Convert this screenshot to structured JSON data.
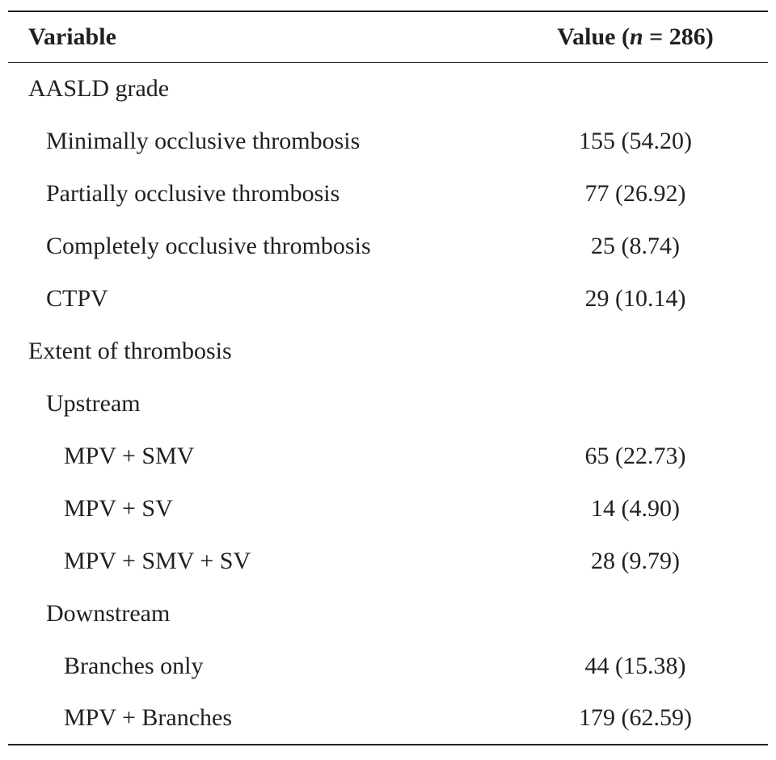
{
  "header": {
    "variable": "Variable",
    "value_prefix": "Value (",
    "value_n": "n",
    "value_suffix": " = 286)"
  },
  "rows": [
    {
      "label": "AASLD grade",
      "value": "",
      "level": 0
    },
    {
      "label": "Minimally occlusive thrombosis",
      "value": "155 (54.20)",
      "level": 1
    },
    {
      "label": "Partially occlusive thrombosis",
      "value": "77 (26.92)",
      "level": 1
    },
    {
      "label": "Completely occlusive thrombosis",
      "value": "25 (8.74)",
      "level": 1
    },
    {
      "label": "CTPV",
      "value": "29 (10.14)",
      "level": 1
    },
    {
      "label": "Extent of thrombosis",
      "value": "",
      "level": 0
    },
    {
      "label": "Upstream",
      "value": "",
      "level": 1
    },
    {
      "label": "MPV + SMV",
      "value": "65 (22.73)",
      "level": 2
    },
    {
      "label": "MPV + SV",
      "value": "14 (4.90)",
      "level": 2
    },
    {
      "label": "MPV + SMV + SV",
      "value": "28 (9.79)",
      "level": 2
    },
    {
      "label": "Downstream",
      "value": "",
      "level": 1
    },
    {
      "label": "Branches only",
      "value": "44 (15.38)",
      "level": 2
    },
    {
      "label": "MPV + Branches",
      "value": "179 (62.59)",
      "level": 2
    }
  ]
}
